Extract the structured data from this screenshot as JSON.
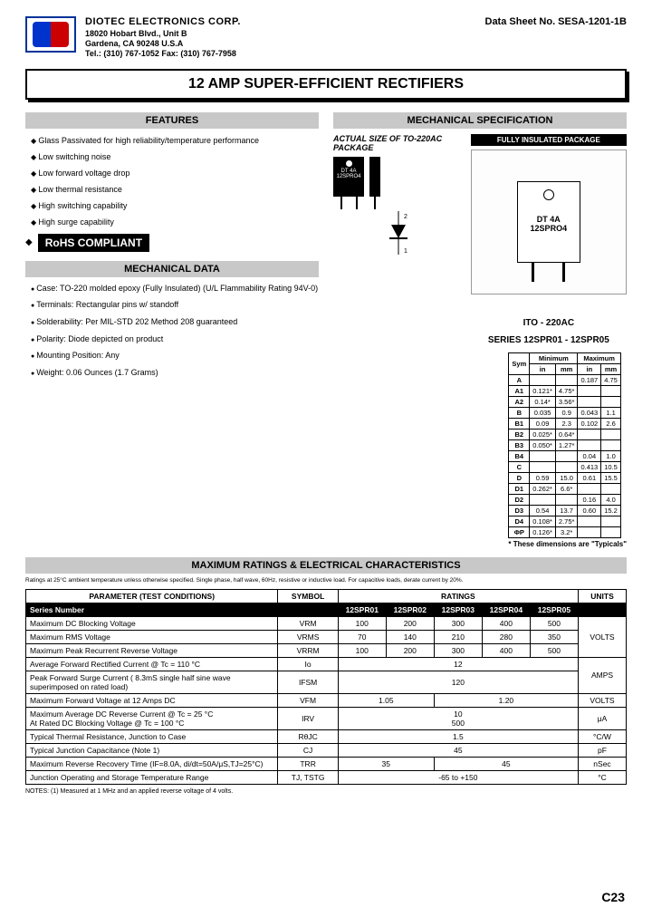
{
  "header": {
    "company_name": "DIOTEC ELECTRONICS CORP.",
    "address1": "18020 Hobart Blvd., Unit B",
    "address2": "Gardena, CA 90248 U.S.A",
    "contact": "Tel.: (310) 767-1052  Fax: (310) 767-7958",
    "datasheet_no": "Data Sheet No. SESA-1201-1B"
  },
  "title": "12 AMP SUPER-EFFICIENT RECTIFIERS",
  "sections": {
    "features_heading": "FEATURES",
    "mechspec_heading": "MECHANICAL SPECIFICATION",
    "mechdata_heading": "MECHANICAL DATA",
    "maxratings_heading": "MAXIMUM RATINGS & ELECTRICAL CHARACTERISTICS"
  },
  "features": [
    "Glass Passivated for high reliability/temperature performance",
    "Low switching noise",
    "Low forward voltage drop",
    "Low thermal resistance",
    "High switching capability",
    "High surge capability"
  ],
  "rohs": "RoHS COMPLIANT",
  "mechdata": [
    "Case: TO-220 molded epoxy (Fully Insulated) (U/L Flammability Rating 94V-0)",
    "Terminals: Rectangular pins w/ standoff",
    "Solderability: Per MIL-STD 202 Method 208 guaranteed",
    "Polarity: Diode depicted on product",
    "Mounting Position: Any",
    "Weight: 0.06 Ounces (1.7 Grams)"
  ],
  "mechspec": {
    "actual_label": "ACTUAL SIZE OF TO-220AC PACKAGE",
    "insulated_label": "FULLY INSULATED PACKAGE",
    "pkg_text1": "DT 4A",
    "pkg_text2": "12SPRO4",
    "ito_label": "ITO - 220AC",
    "series_label": "SERIES 12SPR01 - 12SPR05",
    "dim_note": "* These dimensions are \"Typicals\""
  },
  "dim_table": {
    "headers": [
      "Sym",
      "Minimum",
      "Maximum"
    ],
    "subheaders": [
      "",
      "in",
      "mm",
      "in",
      "mm"
    ],
    "rows": [
      [
        "A",
        "",
        "",
        "0.187",
        "4.75"
      ],
      [
        "A1",
        "0.121*",
        "4.75*",
        "",
        ""
      ],
      [
        "A2",
        "0.14*",
        "3.56*",
        "",
        ""
      ],
      [
        "B",
        "0.035",
        "0.9",
        "0.043",
        "1.1"
      ],
      [
        "B1",
        "0.09",
        "2.3",
        "0.102",
        "2.6"
      ],
      [
        "B2",
        "0.025*",
        "0.64*",
        "",
        ""
      ],
      [
        "B3",
        "0.050*",
        "1.27*",
        "",
        ""
      ],
      [
        "B4",
        "",
        "",
        "0.04",
        "1.0"
      ],
      [
        "C",
        "",
        "",
        "0.413",
        "10.5"
      ],
      [
        "D",
        "0.59",
        "15.0",
        "0.61",
        "15.5"
      ],
      [
        "D1",
        "0.262*",
        "6.6*",
        "",
        ""
      ],
      [
        "D2",
        "",
        "",
        "0.16",
        "4.0"
      ],
      [
        "D3",
        "0.54",
        "13.7",
        "0.60",
        "15.2"
      ],
      [
        "D4",
        "0.108*",
        "2.75*",
        "",
        ""
      ],
      [
        "ΦP",
        "0.126*",
        "3.2*",
        "",
        ""
      ]
    ]
  },
  "ratings_note": "Ratings at 25°C ambient temperature unless otherwise specified. Single phase, half wave, 60Hz, resistive or inductive load. For capacitive loads, derate current by 20%.",
  "ratings_table": {
    "col_headers": {
      "param": "PARAMETER (TEST CONDITIONS)",
      "symbol": "SYMBOL",
      "ratings": "RATINGS",
      "units": "UNITS"
    },
    "series_label": "Series Number",
    "series": [
      "12SPR01",
      "12SPR02",
      "12SPR03",
      "12SPR04",
      "12SPR05"
    ],
    "rows": [
      {
        "param": "Maximum DC Blocking Voltage",
        "symbol": "VRM",
        "vals": [
          "100",
          "200",
          "300",
          "400",
          "500"
        ],
        "units_rowspan": 3,
        "units": "VOLTS"
      },
      {
        "param": "Maximum RMS Voltage",
        "symbol": "VRMS",
        "vals": [
          "70",
          "140",
          "210",
          "280",
          "350"
        ]
      },
      {
        "param": "Maximum Peak Recurrent Reverse Voltage",
        "symbol": "VRRM",
        "vals": [
          "100",
          "200",
          "300",
          "400",
          "500"
        ]
      },
      {
        "param": "Average Forward Rectified Current @ Tc = 110 °C",
        "symbol": "Io",
        "span": "12",
        "units_rowspan": 2,
        "units": "AMPS"
      },
      {
        "param": "Peak Forward Surge Current ( 8.3mS single half sine wave superimposed on rated load)",
        "symbol": "IFSM",
        "span": "120"
      },
      {
        "param": "Maximum Forward Voltage at 12 Amps DC",
        "symbol": "VFM",
        "split": [
          "1.05",
          "1.20"
        ],
        "units": "VOLTS"
      },
      {
        "param": "Maximum Average DC Reverse Current            @ Tc =   25 °C\nAt Rated DC Blocking Voltage                          @ Tc = 100 °C",
        "symbol": "IRV",
        "stack": [
          "10",
          "500"
        ],
        "units": "μA"
      },
      {
        "param": "Typical Thermal Resistance, Junction to Case",
        "symbol": "RθJC",
        "span": "1.5",
        "units": "°C/W"
      },
      {
        "param": "Typical Junction Capacitance (Note 1)",
        "symbol": "CJ",
        "span": "45",
        "units": "pF"
      },
      {
        "param": "Maximum Reverse Recovery Time (IF=8.0A, di/dt=50A/μS,TJ=25°C)",
        "symbol": "TRR",
        "split": [
          "35",
          "45"
        ],
        "units": "nSec"
      },
      {
        "param": "Junction Operating and Storage Temperature Range",
        "symbol": "TJ, TSTG",
        "span": "-65 to +150",
        "units": "°C"
      }
    ]
  },
  "footnote": "NOTES: (1) Measured at 1 MHz and an applied reverse voltage of 4 volts.",
  "page_num": "C23"
}
